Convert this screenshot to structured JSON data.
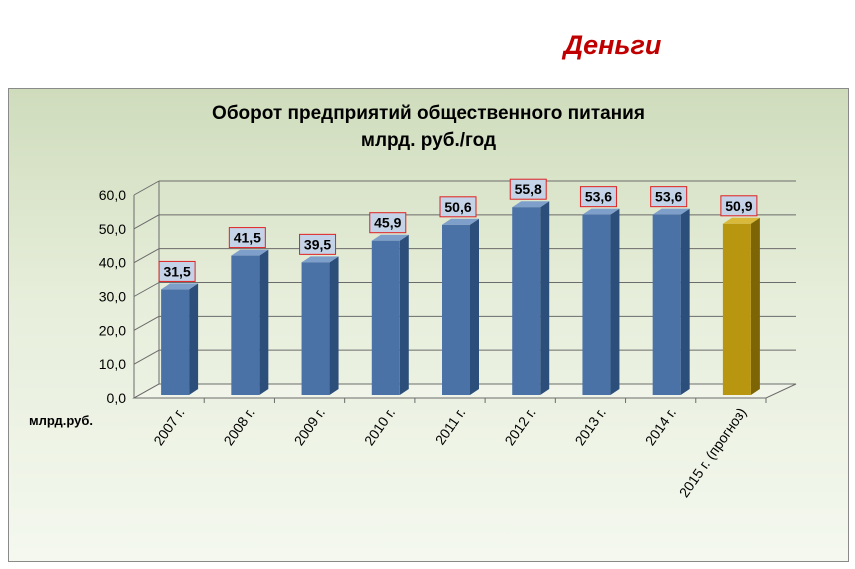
{
  "header": {
    "title": "Деньги"
  },
  "chart_data": {
    "type": "bar",
    "title_line1": "Оборот предприятий общественного питания",
    "title_line2": "млрд. руб./год",
    "ylabel": "млрд.руб.",
    "ylim": [
      0,
      60
    ],
    "ytick_step": 10,
    "ytick_labels": [
      "0,0",
      "10,0",
      "20,0",
      "30,0",
      "40,0",
      "50,0",
      "60,0"
    ],
    "categories": [
      "2007 г.",
      "2008 г.",
      "2009 г.",
      "2010 г.",
      "2011 г.",
      "2012 г.",
      "2013 г.",
      "2014 г.",
      "2015 г. (прогноз)"
    ],
    "values": [
      31.5,
      41.5,
      39.5,
      45.9,
      50.6,
      55.8,
      53.6,
      53.6,
      50.9
    ],
    "value_labels": [
      "31,5",
      "41,5",
      "39,5",
      "45,9",
      "50,6",
      "55,8",
      "53,6",
      "53,6",
      "50,9"
    ],
    "grid": true,
    "colors": {
      "bar_front": "#4a72a6",
      "bar_side": "#2c4e7a",
      "bar_top": "#7f9fcb",
      "forecast_front": "#b8960f",
      "forecast_side": "#7d6506",
      "forecast_top": "#d8b93a",
      "label_bg": "#c5d3e8",
      "label_border": "#e02020",
      "grid": "#6b6b6b"
    },
    "highlight_index": 8
  }
}
